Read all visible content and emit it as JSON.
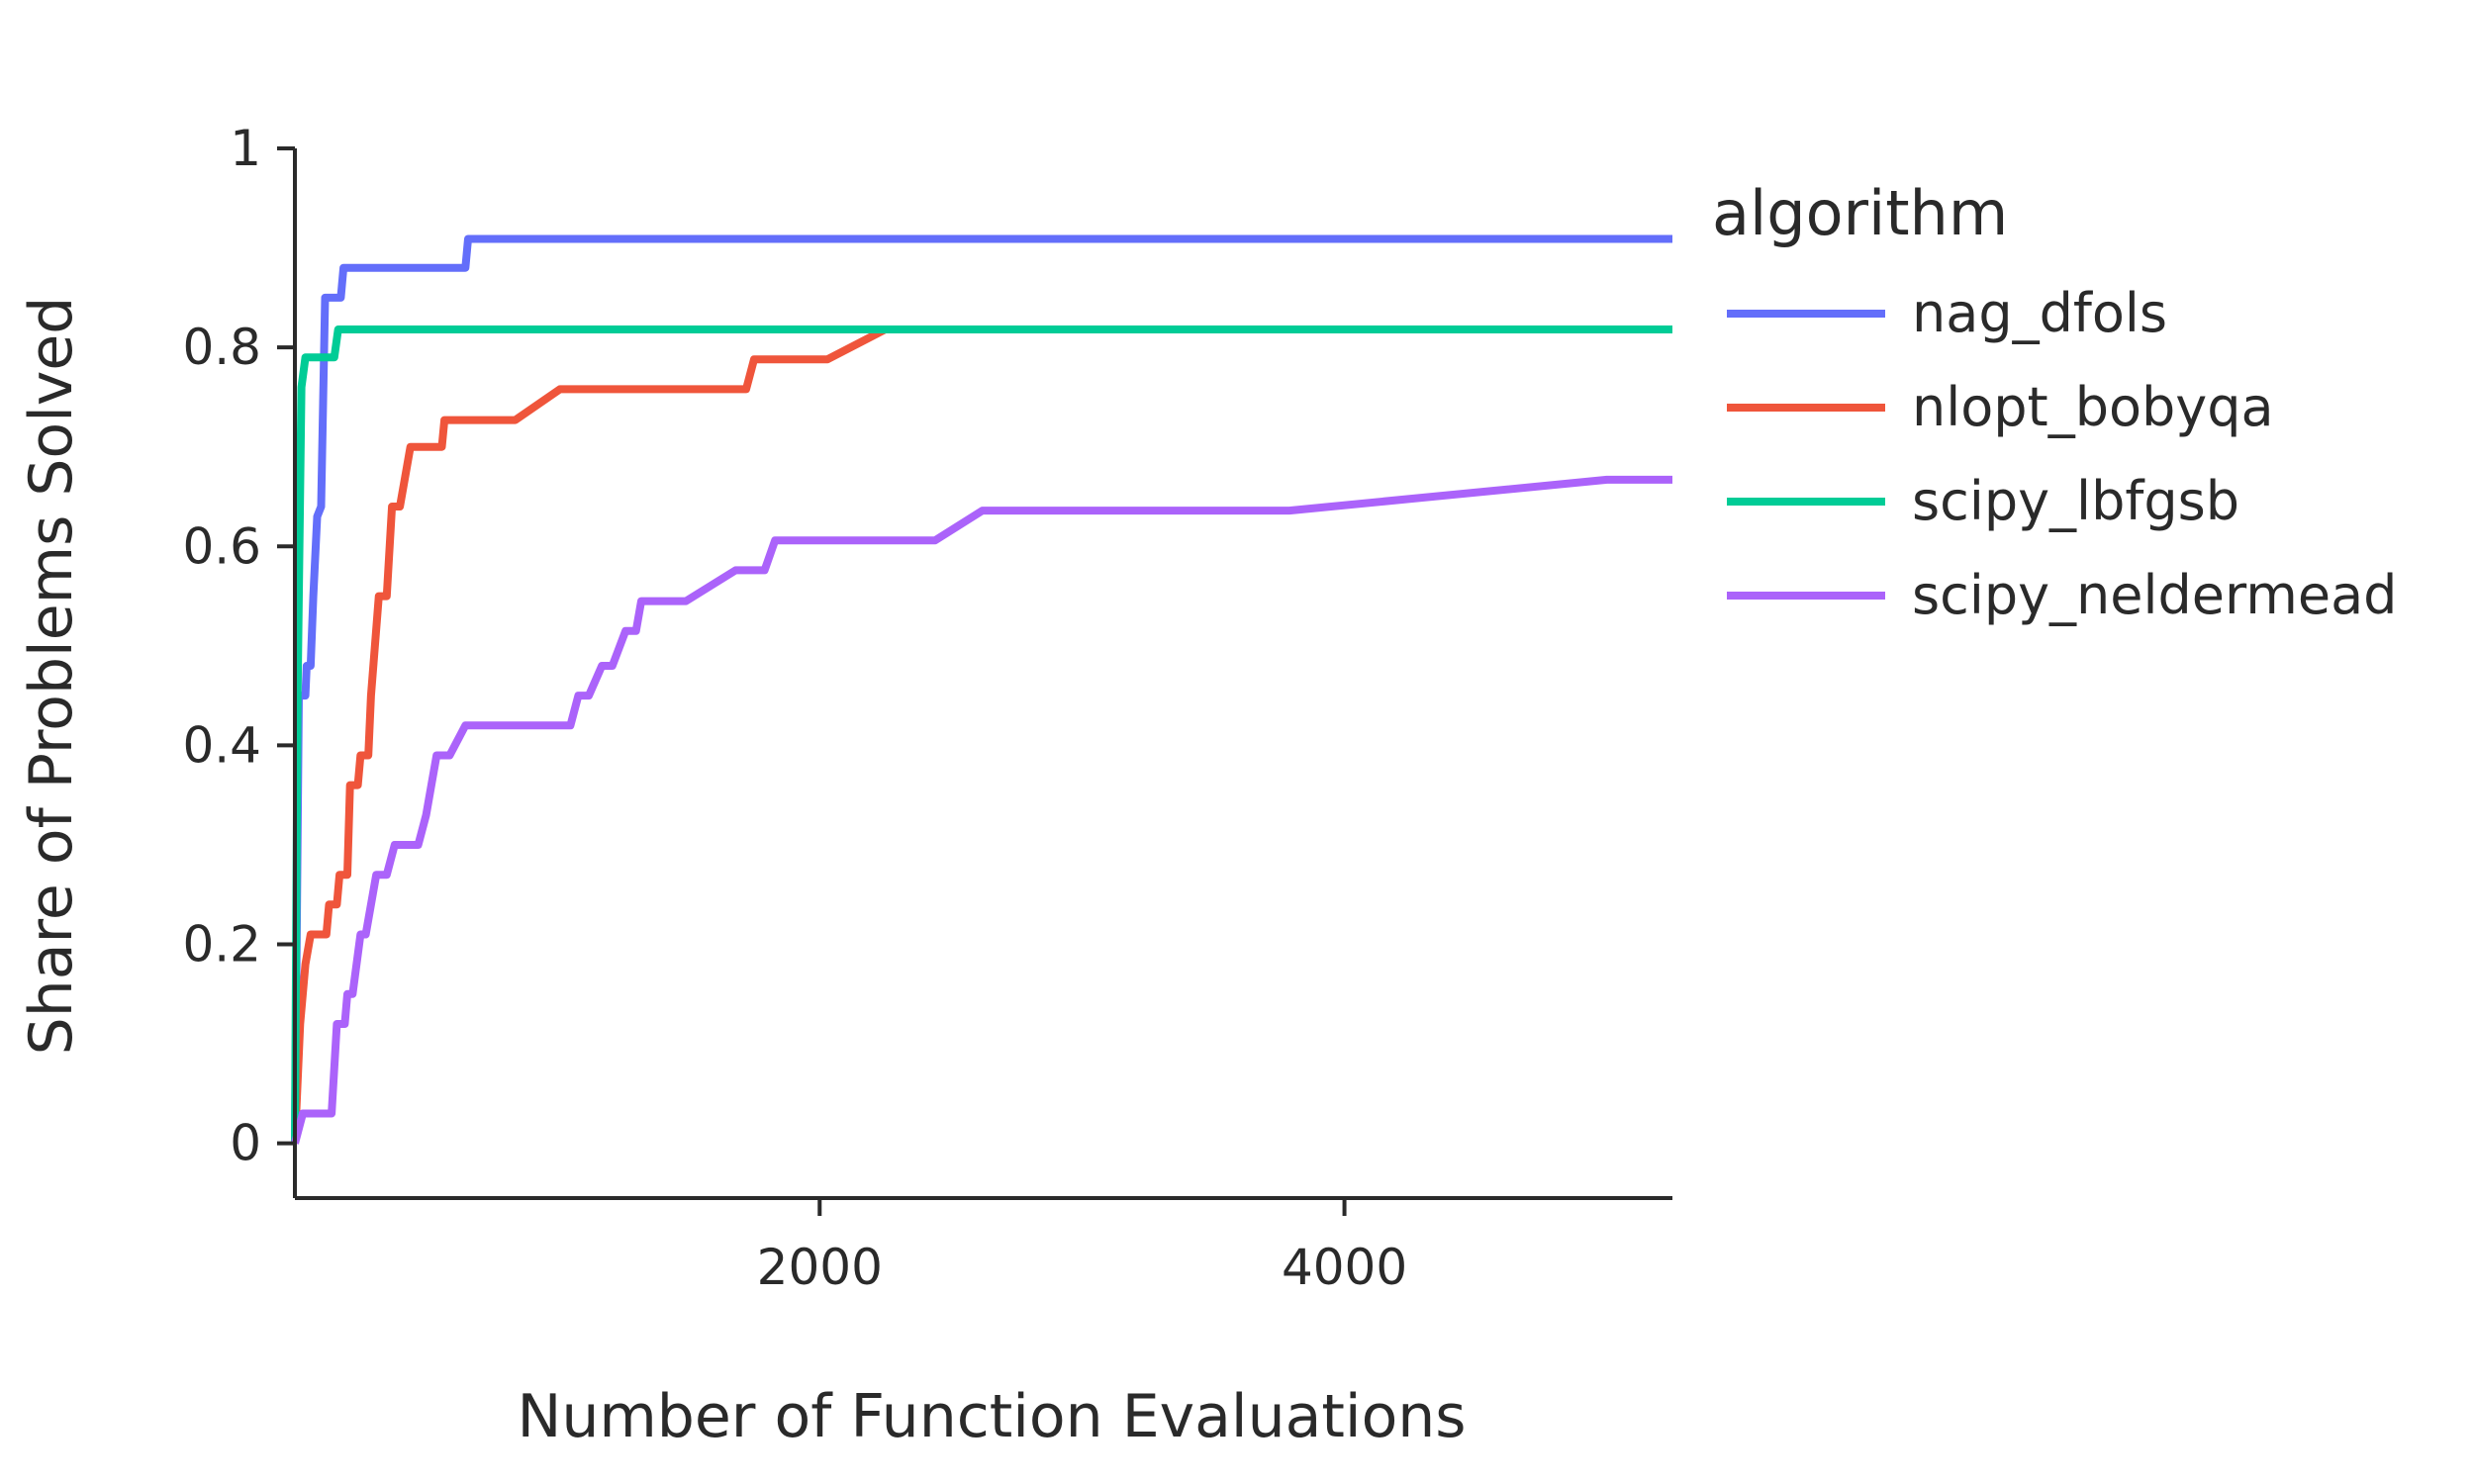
{
  "chart_data": {
    "type": "line",
    "title": "",
    "xlabel": "Number of Function Evaluations",
    "ylabel": "Share of Problems Solved",
    "xlim": [
      0,
      5250
    ],
    "ylim": [
      -0.055,
      1
    ],
    "x_ticks": [
      2000,
      4000
    ],
    "y_ticks": [
      0,
      0.2,
      0.4,
      0.6,
      0.8,
      1
    ],
    "x_tick_labels": [
      "2000",
      "4000"
    ],
    "y_tick_labels": [
      "0",
      "0.2",
      "0.4",
      "0.6",
      "0.8",
      "1"
    ],
    "grid": false,
    "legend": {
      "title": "algorithm",
      "placement": "right"
    },
    "series": [
      {
        "name": "nag_dfols",
        "color": "#636efa",
        "points": [
          [
            0,
            0
          ],
          [
            15,
            0.45
          ],
          [
            40,
            0.45
          ],
          [
            45,
            0.48
          ],
          [
            60,
            0.48
          ],
          [
            70,
            0.55
          ],
          [
            85,
            0.63
          ],
          [
            100,
            0.64
          ],
          [
            115,
            0.85
          ],
          [
            150,
            0.85
          ],
          [
            155,
            0.85
          ],
          [
            175,
            0.85
          ],
          [
            185,
            0.88
          ],
          [
            650,
            0.88
          ],
          [
            660,
            0.909
          ],
          [
            5250,
            0.909
          ]
        ]
      },
      {
        "name": "nlopt_bobyqa",
        "color": "#ef553b",
        "points": [
          [
            0,
            0
          ],
          [
            20,
            0.12
          ],
          [
            40,
            0.18
          ],
          [
            60,
            0.21
          ],
          [
            120,
            0.21
          ],
          [
            130,
            0.24
          ],
          [
            160,
            0.24
          ],
          [
            170,
            0.27
          ],
          [
            200,
            0.27
          ],
          [
            210,
            0.36
          ],
          [
            240,
            0.36
          ],
          [
            250,
            0.39
          ],
          [
            280,
            0.39
          ],
          [
            290,
            0.45
          ],
          [
            320,
            0.55
          ],
          [
            350,
            0.55
          ],
          [
            370,
            0.64
          ],
          [
            400,
            0.64
          ],
          [
            420,
            0.67
          ],
          [
            440,
            0.7
          ],
          [
            560,
            0.7
          ],
          [
            570,
            0.727
          ],
          [
            840,
            0.727
          ],
          [
            1010,
            0.758
          ],
          [
            1720,
            0.758
          ],
          [
            1750,
            0.788
          ],
          [
            2030,
            0.788
          ],
          [
            2250,
            0.818
          ],
          [
            5250,
            0.818
          ]
        ]
      },
      {
        "name": "scipy_lbfgsb",
        "color": "#00cc96",
        "points": [
          [
            0,
            0
          ],
          [
            10,
            0.45
          ],
          [
            25,
            0.76
          ],
          [
            40,
            0.79
          ],
          [
            150,
            0.79
          ],
          [
            165,
            0.818
          ],
          [
            5250,
            0.818
          ]
        ]
      },
      {
        "name": "scipy_neldermead",
        "color": "#ab63fa",
        "points": [
          [
            0,
            0
          ],
          [
            30,
            0.03
          ],
          [
            140,
            0.03
          ],
          [
            160,
            0.12
          ],
          [
            190,
            0.12
          ],
          [
            200,
            0.15
          ],
          [
            220,
            0.15
          ],
          [
            250,
            0.21
          ],
          [
            270,
            0.21
          ],
          [
            290,
            0.24
          ],
          [
            310,
            0.27
          ],
          [
            350,
            0.27
          ],
          [
            380,
            0.3
          ],
          [
            470,
            0.3
          ],
          [
            500,
            0.33
          ],
          [
            520,
            0.36
          ],
          [
            540,
            0.39
          ],
          [
            590,
            0.39
          ],
          [
            650,
            0.42
          ],
          [
            1050,
            0.42
          ],
          [
            1080,
            0.45
          ],
          [
            1120,
            0.45
          ],
          [
            1170,
            0.48
          ],
          [
            1210,
            0.48
          ],
          [
            1260,
            0.515
          ],
          [
            1300,
            0.515
          ],
          [
            1320,
            0.545
          ],
          [
            1490,
            0.545
          ],
          [
            1680,
            0.576
          ],
          [
            1790,
            0.576
          ],
          [
            1830,
            0.606
          ],
          [
            2440,
            0.606
          ],
          [
            2620,
            0.636
          ],
          [
            3790,
            0.636
          ],
          [
            5000,
            0.667
          ],
          [
            5250,
            0.667
          ]
        ]
      }
    ]
  }
}
